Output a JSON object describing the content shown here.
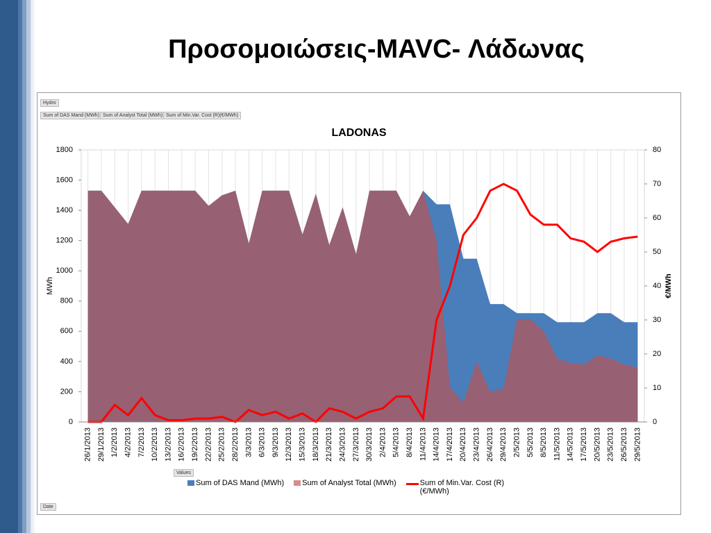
{
  "slide_title": "Προσομοιώσεις-MAVC- Λάδωνας",
  "pivot": {
    "filter_button": "Hydro",
    "value_buttons": [
      "Sum of DAS Mand  (MWh)",
      "Sum of Analyst Total (MWh)",
      "Sum of Min.Var. Cost (R)(€/MWh)"
    ],
    "values_button": "Values",
    "axis_button": "Date"
  },
  "chart_data": {
    "type": "combo",
    "title": "LADONAS",
    "y_label": "MWh",
    "y2_label": "€/MWh",
    "categories": [
      "26/1/2013",
      "29/1/2013",
      "1/2/2013",
      "4/2/2013",
      "7/2/2013",
      "10/2/2013",
      "13/2/2013",
      "16/2/2013",
      "19/2/2013",
      "22/2/2013",
      "25/2/2013",
      "28/2/2013",
      "3/3/2013",
      "6/3/2013",
      "9/3/2013",
      "12/3/2013",
      "15/3/2013",
      "18/3/2013",
      "21/3/2013",
      "24/3/2013",
      "27/3/2013",
      "30/3/2013",
      "2/4/2013",
      "5/4/2013",
      "8/4/2013",
      "11/4/2013",
      "14/4/2013",
      "17/4/2013",
      "20/4/2013",
      "23/4/2013",
      "26/4/2013",
      "29/4/2013",
      "2/5/2013",
      "5/5/2013",
      "8/5/2013",
      "11/5/2013",
      "14/5/2013",
      "17/5/2013",
      "20/5/2013",
      "23/5/2013",
      "26/5/2013",
      "29/5/2013"
    ],
    "series": [
      {
        "name": "Sum of DAS Mand  (MWh)",
        "type": "area",
        "color": "#4a7ebb",
        "values": [
          1530,
          1530,
          1420,
          1310,
          1530,
          1530,
          1530,
          1530,
          1530,
          1430,
          1500,
          1530,
          1180,
          1530,
          1530,
          1530,
          1240,
          1510,
          1170,
          1420,
          1110,
          1530,
          1530,
          1530,
          1360,
          1530,
          1440,
          1440,
          1080,
          1080,
          780,
          780,
          720,
          720,
          720,
          660,
          660,
          660,
          720,
          720,
          660,
          660
        ]
      },
      {
        "name": "Sum of Analyst Total (MWh)",
        "type": "area",
        "color": "#c0504d",
        "values": [
          1530,
          1530,
          1420,
          1310,
          1530,
          1530,
          1530,
          1530,
          1530,
          1430,
          1500,
          1530,
          1180,
          1530,
          1530,
          1530,
          1240,
          1510,
          1170,
          1420,
          1110,
          1530,
          1530,
          1530,
          1360,
          1530,
          1200,
          230,
          130,
          400,
          200,
          220,
          680,
          680,
          600,
          420,
          390,
          380,
          440,
          420,
          380,
          360
        ]
      },
      {
        "name": "Sum of Min.Var. Cost (R)(€/MWh)",
        "type": "line",
        "axis": "y2",
        "color": "#ff0000",
        "values": [
          0,
          0,
          5,
          2,
          7,
          2,
          0.5,
          0.5,
          1,
          1,
          1.5,
          0,
          3.5,
          2,
          3,
          1,
          2.5,
          0,
          4,
          3,
          1,
          3,
          4,
          7.5,
          7.5,
          1,
          30,
          40,
          55,
          60,
          68,
          70,
          68,
          61,
          58,
          58,
          54,
          53,
          50,
          53,
          54,
          54.5
        ]
      }
    ],
    "ylim": [
      0,
      1800
    ],
    "yticks": [
      0,
      200,
      400,
      600,
      800,
      1000,
      1200,
      1400,
      1600,
      1800
    ],
    "y2lim": [
      0,
      80
    ],
    "y2ticks": [
      0,
      10,
      20,
      30,
      40,
      50,
      60,
      70,
      80
    ],
    "grid": "x",
    "legend": "bottom"
  }
}
